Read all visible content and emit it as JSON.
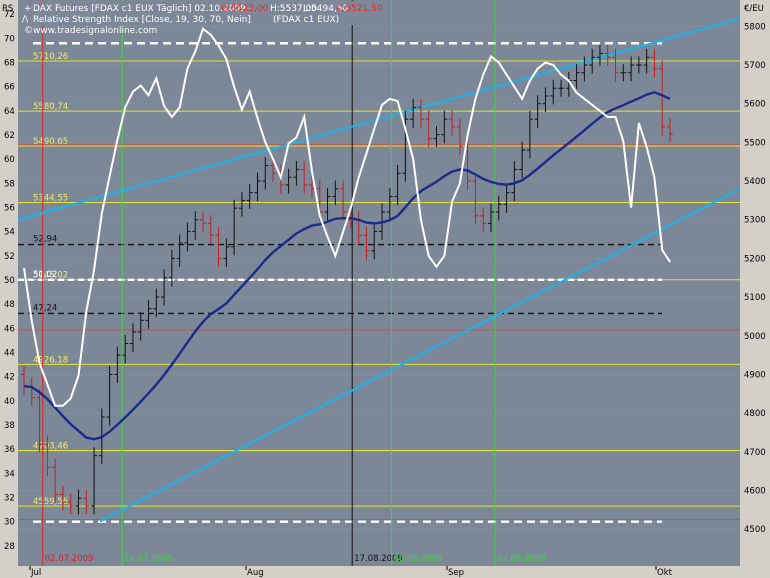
{
  "header": {
    "icon_1": "+",
    "line1": "DAX Futures [FDAX c1 EUX  Täglich] 02.10.2009 - ",
    "o": "O:5522,00",
    "h": "H:5537,00",
    "l": "L:5494,50",
    "c": "C:5521,50",
    "icon_2": "/\\",
    "line2": "Relative Strength Index [Close, 19, 30, 70, Nein]",
    "line2b": "(FDAX c1 EUX)",
    "watermark_icon": "©",
    "watermark": "www.tradesignalonline.com"
  },
  "chart_data": {
    "type": "candlestick",
    "left_axis": {
      "label": "RS",
      "ticks": [
        "72",
        "70",
        "68",
        "66",
        "64",
        "62",
        "60",
        "58",
        "56",
        "54",
        "52",
        "50",
        "48",
        "46",
        "44",
        "42",
        "40",
        "38",
        "36",
        "34",
        "32",
        "30",
        "28"
      ],
      "min": 26.5,
      "max": 72.6
    },
    "right_axis": {
      "label": "€/EU",
      "ticks": [
        "5800",
        "5700",
        "5600",
        "5500",
        "5400",
        "5300",
        "5200",
        "5100",
        "5000",
        "4900",
        "4800",
        "4700",
        "4600",
        "4500"
      ],
      "min": 4410,
      "max": 5850
    },
    "x_labels": [
      "Jul",
      "Aug",
      "Sep",
      "Okt"
    ],
    "levels": [
      "5710,26",
      "5580,74",
      "5490,65",
      "5344,55",
      "5145,02",
      "4926,18",
      "4703,46",
      "4559,56"
    ],
    "rsi_levels": [
      "52,94",
      "50,02",
      "47,24"
    ],
    "marker_dates": [
      "02.07.2009",
      "14.07.2009",
      "17.08.2009",
      "18.08.2009",
      "07.09.2009"
    ],
    "close": [
      4870,
      4840,
      4720,
      4660,
      4590,
      4570,
      4560,
      4580,
      4560,
      4690,
      4790,
      4900,
      4950,
      4980,
      5010,
      5040,
      5070,
      5100,
      5150,
      5200,
      5240,
      5270,
      5300,
      5290,
      5260,
      5200,
      5230,
      5330,
      5350,
      5370,
      5400,
      5440,
      5420,
      5390,
      5410,
      5430,
      5390,
      5380,
      5320,
      5360,
      5380,
      5320,
      5300,
      5260,
      5220,
      5270,
      5320,
      5360,
      5420,
      5560,
      5590,
      5560,
      5510,
      5520,
      5560,
      5540,
      5490,
      5400,
      5310,
      5290,
      5320,
      5340,
      5370,
      5430,
      5480,
      5560,
      5600,
      5620,
      5640,
      5640,
      5660,
      5680,
      5700,
      5720,
      5730,
      5720,
      5680,
      5680,
      5700,
      5700,
      5720,
      5690,
      5540,
      5522
    ],
    "rsi": [
      51.0,
      46.6,
      43.1,
      41.4,
      39.6,
      39.6,
      40.2,
      42.1,
      47.4,
      50.8,
      55.5,
      58.6,
      61.6,
      64.3,
      65.6,
      66.1,
      65.3,
      66.7,
      64.4,
      63.5,
      64.3,
      67.5,
      68.9,
      70.8,
      70.3,
      69.4,
      68.3,
      66.0,
      64.1,
      65.6,
      63.4,
      61.4,
      60.0,
      58.5,
      61.3,
      61.8,
      63.5,
      59.0,
      55.3,
      53.6,
      52.0,
      54.0,
      56.0,
      58.5,
      60.5,
      62.5,
      64.5,
      65.0,
      64.8,
      62.5,
      60.0,
      55.0,
      52.0,
      51.1,
      52.0,
      56.5,
      58.0,
      62.0,
      65.0,
      67.0,
      68.5,
      68.0,
      67.0,
      66.0,
      65.0,
      66.5,
      67.5,
      68.0,
      67.8,
      67.0,
      66.5,
      65.5,
      65.0,
      64.5,
      64.0,
      63.5,
      63.5,
      61.5,
      56.0,
      63.0,
      61.0,
      58.5,
      52.5,
      51.5
    ]
  }
}
